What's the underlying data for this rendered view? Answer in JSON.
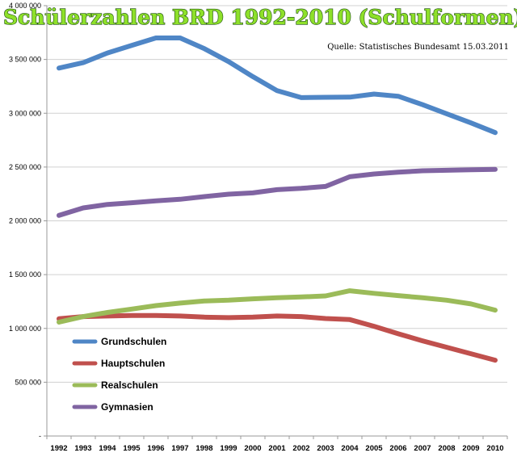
{
  "chart_data": {
    "type": "line",
    "title": "Schülerzahlen BRD 1992-2010 (Schulformen)",
    "source": "Quelle: Statistisches Bundesamt 15.03.2011",
    "x": [
      "1992",
      "1993",
      "1994",
      "1995",
      "1996",
      "1997",
      "1998",
      "1999",
      "2000",
      "2001",
      "2002",
      "2003",
      "2004",
      "2005",
      "2006",
      "2007",
      "2008",
      "2009",
      "2010"
    ],
    "ylim": [
      0,
      4000000
    ],
    "yticks": [
      0,
      500000,
      1000000,
      1500000,
      2000000,
      2500000,
      3000000,
      3500000,
      4000000
    ],
    "ytick_labels": [
      "-",
      "500 000",
      "1 000 000",
      "1 500 000",
      "2 000 000",
      "2 500 000",
      "3 000 000",
      "3 500 000",
      "4 000 000"
    ],
    "xlabel": "",
    "ylabel": "",
    "grid": true,
    "legend_position": "bottom-left",
    "series": [
      {
        "name": "Grundschulen",
        "color": "#4f86c6",
        "values": [
          3420000,
          3470000,
          3560000,
          3630000,
          3700000,
          3700000,
          3600000,
          3480000,
          3340000,
          3210000,
          3145000,
          3148000,
          3150000,
          3178000,
          3158000,
          3080000,
          2995000,
          2910000,
          2820000
        ]
      },
      {
        "name": "Hauptschulen",
        "color": "#c0504d",
        "values": [
          1090000,
          1110000,
          1115000,
          1120000,
          1120000,
          1115000,
          1105000,
          1100000,
          1105000,
          1115000,
          1110000,
          1092000,
          1082000,
          1020000,
          950000,
          885000,
          825000,
          765000,
          705000
        ]
      },
      {
        "name": "Realschulen",
        "color": "#9bbb59",
        "values": [
          1058000,
          1110000,
          1148000,
          1180000,
          1212000,
          1235000,
          1255000,
          1262000,
          1275000,
          1285000,
          1292000,
          1302000,
          1350000,
          1326000,
          1305000,
          1285000,
          1262000,
          1228000,
          1170000
        ]
      },
      {
        "name": "Gymnasien",
        "color": "#8064a2",
        "values": [
          2050000,
          2120000,
          2152000,
          2168000,
          2185000,
          2200000,
          2225000,
          2248000,
          2260000,
          2290000,
          2302000,
          2320000,
          2410000,
          2435000,
          2452000,
          2465000,
          2470000,
          2475000,
          2478000
        ]
      }
    ]
  }
}
